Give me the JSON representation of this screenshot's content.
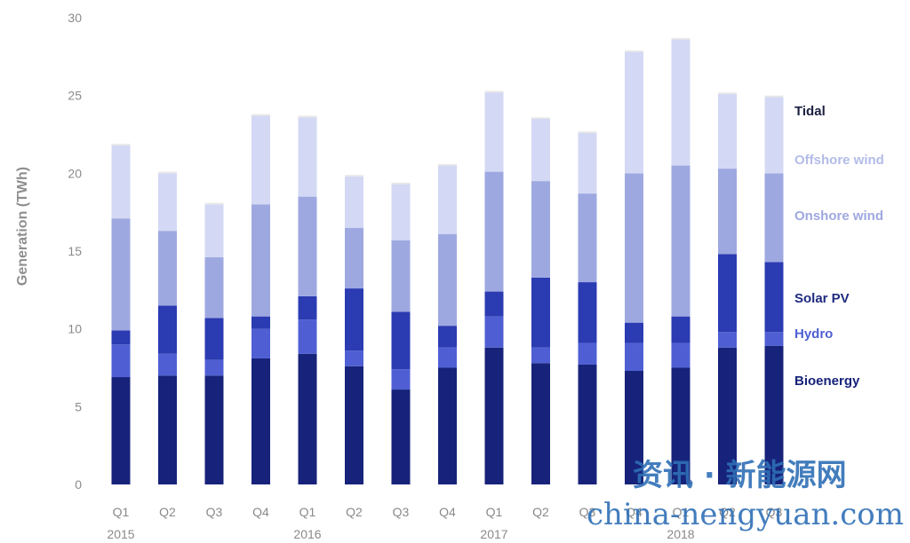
{
  "chart_data": {
    "type": "bar",
    "stacked": true,
    "ylabel": "Generation (TWh)",
    "ylim": [
      0,
      30
    ],
    "yticks": [
      0,
      5,
      10,
      15,
      20,
      25,
      30
    ],
    "grid": false,
    "legend_position": "right",
    "categories": [
      "Q1",
      "Q2",
      "Q3",
      "Q4",
      "Q1",
      "Q2",
      "Q3",
      "Q4",
      "Q1",
      "Q2",
      "Q3",
      "Q4",
      "Q1",
      "Q2",
      "Q3"
    ],
    "year_labels": [
      {
        "label": "2015",
        "index": 0
      },
      {
        "label": "2016",
        "index": 4
      },
      {
        "label": "2017",
        "index": 8
      },
      {
        "label": "2018",
        "index": 12
      }
    ],
    "series": [
      {
        "name": "Bioenergy",
        "color": "#17237a",
        "values": [
          6.9,
          7.0,
          7.0,
          8.1,
          8.4,
          7.6,
          6.1,
          7.5,
          8.8,
          7.8,
          7.7,
          7.3,
          7.5,
          8.8,
          8.9
        ]
      },
      {
        "name": "Hydro",
        "color": "#4f5fd3",
        "values": [
          2.1,
          1.4,
          1.0,
          1.9,
          2.2,
          1.0,
          1.3,
          1.3,
          2.0,
          1.0,
          1.4,
          1.8,
          1.6,
          1.0,
          0.9
        ]
      },
      {
        "name": "Solar PV",
        "color": "#2b3bb2",
        "values": [
          0.9,
          3.1,
          2.7,
          0.8,
          1.5,
          4.0,
          3.7,
          1.4,
          1.6,
          4.5,
          3.9,
          1.3,
          1.7,
          5.0,
          4.5
        ]
      },
      {
        "name": "Onshore wind",
        "color": "#9ea8e0",
        "values": [
          7.2,
          4.8,
          3.9,
          7.2,
          6.4,
          3.9,
          4.6,
          5.9,
          7.7,
          6.2,
          5.7,
          9.6,
          9.7,
          5.5,
          5.7
        ]
      },
      {
        "name": "Offshore wind",
        "color": "#d3d8f4",
        "values": [
          4.7,
          3.7,
          3.4,
          5.7,
          5.1,
          3.3,
          3.6,
          4.4,
          5.1,
          4.0,
          3.9,
          7.8,
          8.1,
          4.8,
          4.9
        ]
      },
      {
        "name": "Tidal",
        "color": "#e8e8e8",
        "values": [
          0.1,
          0.1,
          0.1,
          0.1,
          0.1,
          0.1,
          0.1,
          0.1,
          0.1,
          0.1,
          0.1,
          0.1,
          0.1,
          0.1,
          0.1
        ]
      }
    ],
    "legend": [
      {
        "name": "Tidal",
        "color": "#1b2040"
      },
      {
        "name": "Offshore wind",
        "color": "#b3bbe8"
      },
      {
        "name": "Onshore wind",
        "color": "#9ea8e0"
      },
      {
        "name": "Solar PV",
        "color": "#1f2a80"
      },
      {
        "name": "Hydro",
        "color": "#4f5fd3"
      },
      {
        "name": "Bioenergy",
        "color": "#17237a"
      }
    ]
  },
  "watermark": {
    "chinese": "资讯 · 新能源网",
    "url": "china-nengyuan.com",
    "color": "#2f6fb6"
  }
}
